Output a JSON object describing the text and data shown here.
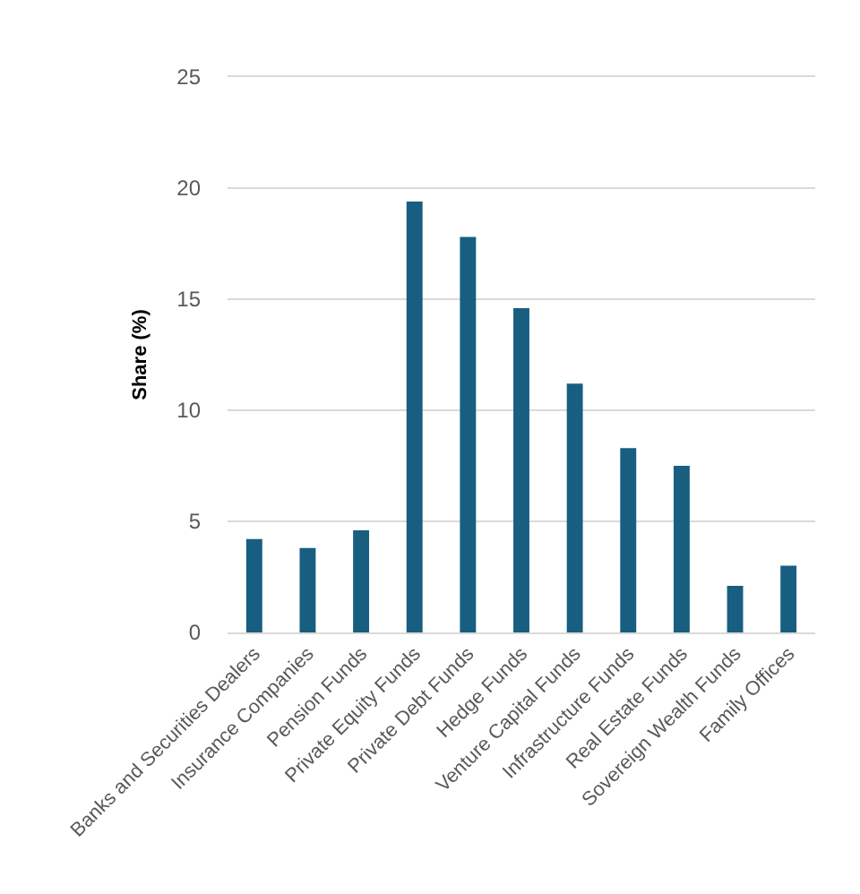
{
  "chart_data": {
    "type": "bar",
    "ylabel": "Share (%)",
    "categories": [
      "Banks and Securities Dealers",
      "Insurance Companies",
      "Pension Funds",
      "Private Equity Funds",
      "Private Debt Funds",
      "Hedge Funds",
      "Venture Capital Funds",
      "Infrastructure Funds",
      "Real Estate Funds",
      "Sovereign Wealth Funds",
      "Family Offices"
    ],
    "values": [
      4.2,
      3.8,
      4.6,
      19.4,
      17.8,
      14.6,
      11.2,
      8.3,
      7.5,
      2.1,
      3.0
    ],
    "color": "#175e81",
    "ylim": [
      0,
      25
    ],
    "yticks": [
      0,
      5,
      10,
      15,
      20,
      25
    ],
    "grid": "y",
    "legend": false
  }
}
